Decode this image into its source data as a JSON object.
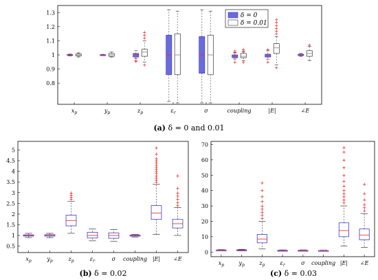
{
  "charts": [
    {
      "caption": {
        "label": "(a)",
        "text": "δ = 0 and 0.01"
      },
      "legend": [
        {
          "label": "δ = 0",
          "color": "#6b6bdb"
        },
        {
          "label": "δ = 0.01",
          "color": "#ffffff"
        }
      ]
    },
    {
      "caption": {
        "label": "(b)",
        "text": "δ = 0.02"
      }
    },
    {
      "caption": {
        "label": "(c)",
        "text": "δ = 0.03"
      }
    }
  ],
  "chart_data": [
    {
      "type": "box",
      "categories": [
        "x_p",
        "y_p",
        "z_p",
        "ε_r",
        "σ",
        "coupling",
        "|E|",
        "∠E"
      ],
      "ylim": [
        0.65,
        1.35
      ],
      "yticks": [
        0.8,
        0.9,
        1,
        1.1,
        1.2,
        1.3
      ],
      "series": [
        {
          "name": "δ = 0",
          "fill": "#6b6bdb",
          "boxes": [
            {
              "min": 0.993,
              "q1": 0.996,
              "med": 1.0,
              "q3": 1.003,
              "max": 1.006,
              "outliers": []
            },
            {
              "min": 0.995,
              "q1": 0.997,
              "med": 1.0,
              "q3": 1.002,
              "max": 1.004,
              "outliers": []
            },
            {
              "min": 0.975,
              "q1": 0.985,
              "med": 1.0,
              "q3": 1.01,
              "max": 1.03,
              "outliers": [
                0.96,
                0.955
              ]
            },
            {
              "min": 0.67,
              "q1": 0.86,
              "med": 1.0,
              "q3": 1.14,
              "max": 1.32,
              "outliers": []
            },
            {
              "min": 0.66,
              "q1": 0.87,
              "med": 1.0,
              "q3": 1.13,
              "max": 1.32,
              "outliers": []
            },
            {
              "min": 0.97,
              "q1": 0.98,
              "med": 0.99,
              "q3": 1.0,
              "max": 1.015,
              "outliers": [
                1.02,
                1.03,
                0.95
              ]
            },
            {
              "min": 0.97,
              "q1": 0.985,
              "med": 0.995,
              "q3": 1.005,
              "max": 1.03,
              "outliers": [
                1.04,
                0.95
              ]
            },
            {
              "min": 0.99,
              "q1": 0.995,
              "med": 1.0,
              "q3": 1.005,
              "max": 1.01,
              "outliers": []
            }
          ]
        },
        {
          "name": "δ = 0.01",
          "fill": "#ffffff",
          "boxes": [
            {
              "min": 0.985,
              "q1": 0.993,
              "med": 1.0,
              "q3": 1.007,
              "max": 1.015,
              "outliers": []
            },
            {
              "min": 0.985,
              "q1": 0.99,
              "med": 1.0,
              "q3": 1.01,
              "max": 1.02,
              "outliers": []
            },
            {
              "min": 0.95,
              "q1": 0.99,
              "med": 1.02,
              "q3": 1.04,
              "max": 1.1,
              "outliers": [
                1.12,
                1.14,
                1.16,
                0.93
              ]
            },
            {
              "min": 0.66,
              "q1": 0.86,
              "med": 1.0,
              "q3": 1.15,
              "max": 1.31,
              "outliers": []
            },
            {
              "min": 0.66,
              "q1": 0.86,
              "med": 1.0,
              "q3": 1.14,
              "max": 1.31,
              "outliers": []
            },
            {
              "min": 0.96,
              "q1": 0.98,
              "med": 0.99,
              "q3": 1.01,
              "max": 1.02,
              "outliers": [
                1.03,
                1.04,
                0.95
              ]
            },
            {
              "min": 0.93,
              "q1": 1.01,
              "med": 1.05,
              "q3": 1.08,
              "max": 1.13,
              "outliers": [
                1.15,
                1.17,
                1.19,
                1.21,
                1.23,
                1.25,
                0.91
              ]
            },
            {
              "min": 0.96,
              "q1": 0.99,
              "med": 1.01,
              "q3": 1.03,
              "max": 1.06,
              "outliers": [
                1.07
              ]
            }
          ]
        }
      ]
    },
    {
      "type": "box",
      "categories": [
        "x_p",
        "y_p",
        "z_p",
        "ε_r",
        "σ",
        "coupling",
        "|E|",
        "∠E"
      ],
      "ylim": [
        0.2,
        5.4
      ],
      "yticks": [
        0.5,
        1,
        1.5,
        2,
        2.5,
        3,
        3.5,
        4,
        4.5,
        5
      ],
      "boxes": [
        {
          "min": 0.9,
          "q1": 0.97,
          "med": 1.0,
          "q3": 1.03,
          "max": 1.1,
          "outliers": []
        },
        {
          "min": 0.9,
          "q1": 0.97,
          "med": 1.0,
          "q3": 1.04,
          "max": 1.1,
          "outliers": []
        },
        {
          "min": 1.1,
          "q1": 1.45,
          "med": 1.7,
          "q3": 1.95,
          "max": 2.6,
          "outliers": [
            2.7,
            2.8,
            2.9,
            3.0
          ]
        },
        {
          "min": 0.75,
          "q1": 0.88,
          "med": 1.0,
          "q3": 1.15,
          "max": 1.3,
          "outliers": []
        },
        {
          "min": 0.72,
          "q1": 0.87,
          "med": 1.0,
          "q3": 1.12,
          "max": 1.28,
          "outliers": []
        },
        {
          "min": 0.93,
          "q1": 0.97,
          "med": 1.0,
          "q3": 1.02,
          "max": 1.05,
          "outliers": []
        },
        {
          "min": 1.05,
          "q1": 1.75,
          "med": 2.05,
          "q3": 2.4,
          "max": 3.4,
          "outliers": [
            3.5,
            3.6,
            3.7,
            3.8,
            3.9,
            4.0,
            4.1,
            4.2,
            4.3,
            4.4,
            4.5,
            4.6,
            4.8,
            5.1
          ]
        },
        {
          "min": 1.0,
          "q1": 1.35,
          "med": 1.55,
          "q3": 1.75,
          "max": 2.3,
          "outliers": [
            2.4,
            2.55,
            2.7,
            2.85,
            3.0,
            3.2,
            3.8
          ]
        }
      ]
    },
    {
      "type": "box",
      "categories": [
        "x_p",
        "y_p",
        "z_p",
        "ε_r",
        "σ",
        "coupling",
        "|E|",
        "∠E"
      ],
      "ylim": [
        -3,
        72
      ],
      "yticks": [
        0,
        10,
        20,
        30,
        40,
        50,
        60,
        70
      ],
      "boxes": [
        {
          "min": 0.8,
          "q1": 1.0,
          "med": 1.2,
          "q3": 1.4,
          "max": 1.6,
          "outliers": []
        },
        {
          "min": 0.8,
          "q1": 1.0,
          "med": 1.2,
          "q3": 1.5,
          "max": 1.8,
          "outliers": []
        },
        {
          "min": 2,
          "q1": 6,
          "med": 8.5,
          "q3": 11.5,
          "max": 20,
          "outliers": [
            22,
            24,
            26,
            28,
            30,
            33,
            36,
            40,
            45
          ]
        },
        {
          "min": 0.5,
          "q1": 0.8,
          "med": 1.0,
          "q3": 1.2,
          "max": 1.4,
          "outliers": []
        },
        {
          "min": 0.5,
          "q1": 0.8,
          "med": 1.0,
          "q3": 1.2,
          "max": 1.4,
          "outliers": []
        },
        {
          "min": 0.6,
          "q1": 0.9,
          "med": 1.0,
          "q3": 1.1,
          "max": 1.3,
          "outliers": []
        },
        {
          "min": 4,
          "q1": 10,
          "med": 14,
          "q3": 19,
          "max": 30,
          "outliers": [
            32,
            34,
            36,
            38,
            40,
            43,
            46,
            50,
            55,
            60,
            65,
            68
          ]
        },
        {
          "min": 3,
          "q1": 8,
          "med": 11,
          "q3": 15,
          "max": 25,
          "outliers": [
            27,
            29,
            31,
            34,
            38,
            44
          ]
        }
      ]
    }
  ]
}
